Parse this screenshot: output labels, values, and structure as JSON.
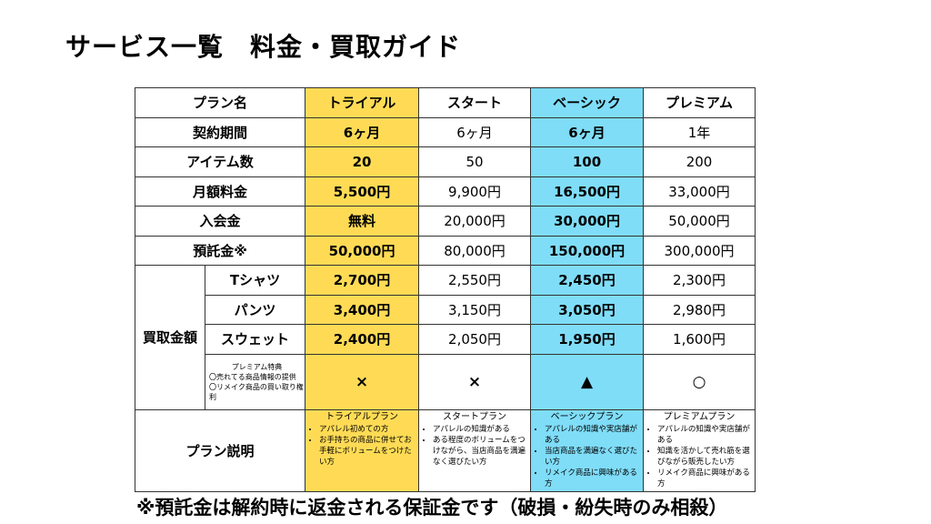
{
  "title": "サービス一覧　料金・買取ガイド",
  "colors": {
    "trial": "#FFDB55",
    "basic": "#7FDDF8"
  },
  "header": [
    "プラン名",
    "トライアル",
    "スタート",
    "ベーシック",
    "プレミアム"
  ],
  "rows": [
    {
      "label": "契約期間",
      "values": [
        "6ヶ月",
        "6ヶ月",
        "6ヶ月",
        "1年"
      ]
    },
    {
      "label": "アイテム数",
      "values": [
        "20",
        "50",
        "100",
        "200"
      ]
    },
    {
      "label": "月額料金",
      "values": [
        "5,500円",
        "9,900円",
        "16,500円",
        "33,000円"
      ]
    },
    {
      "label": "入会金",
      "values": [
        "無料",
        "20,000円",
        "30,000円",
        "50,000円"
      ]
    },
    {
      "label": "預託金※",
      "values": [
        "50,000円",
        "80,000円",
        "150,000円",
        "300,000円"
      ]
    }
  ],
  "buyback": {
    "label": "買取金額",
    "items": [
      {
        "label": "Tシャツ",
        "values": [
          "2,700円",
          "2,550円",
          "2,450円",
          "2,300円"
        ]
      },
      {
        "label": "パンツ",
        "values": [
          "3,400円",
          "3,150円",
          "3,050円",
          "2,980円"
        ]
      },
      {
        "label": "スウェット",
        "values": [
          "2,400円",
          "2,050円",
          "1,950円",
          "1,600円"
        ]
      }
    ]
  },
  "perk": {
    "title": "プレミアム特典",
    "lines": [
      "〇売れてる商品情報の提供",
      "〇リメイク商品の買い取り権利"
    ],
    "values": [
      "×",
      "×",
      "▲",
      "○"
    ]
  },
  "description": {
    "label": "プラン説明",
    "plans": [
      {
        "title": "トライアルプラン",
        "points": [
          "アパレル初めての方",
          "お手持ちの商品に併せてお手軽にボリュームをつけたい方"
        ]
      },
      {
        "title": "スタートプラン",
        "points": [
          "アパレルの知識がある",
          "ある程度のボリュームをつけながら、当店商品を満遍なく選びたい方"
        ]
      },
      {
        "title": "ベーシックプラン",
        "points": [
          "アパレルの知識や実店舗がある",
          "当店商品を満遍なく選びたい方",
          "リメイク商品に興味がある方"
        ]
      },
      {
        "title": "プレミアムプラン",
        "points": [
          "アパレルの知識や実店舗がある",
          "知識を活かして売れ筋を選びながら販売したい方",
          "リメイク商品に興味がある方"
        ]
      }
    ]
  },
  "footnote": "※預託金は解約時に返金される保証金です（破損・紛失時のみ相殺）"
}
